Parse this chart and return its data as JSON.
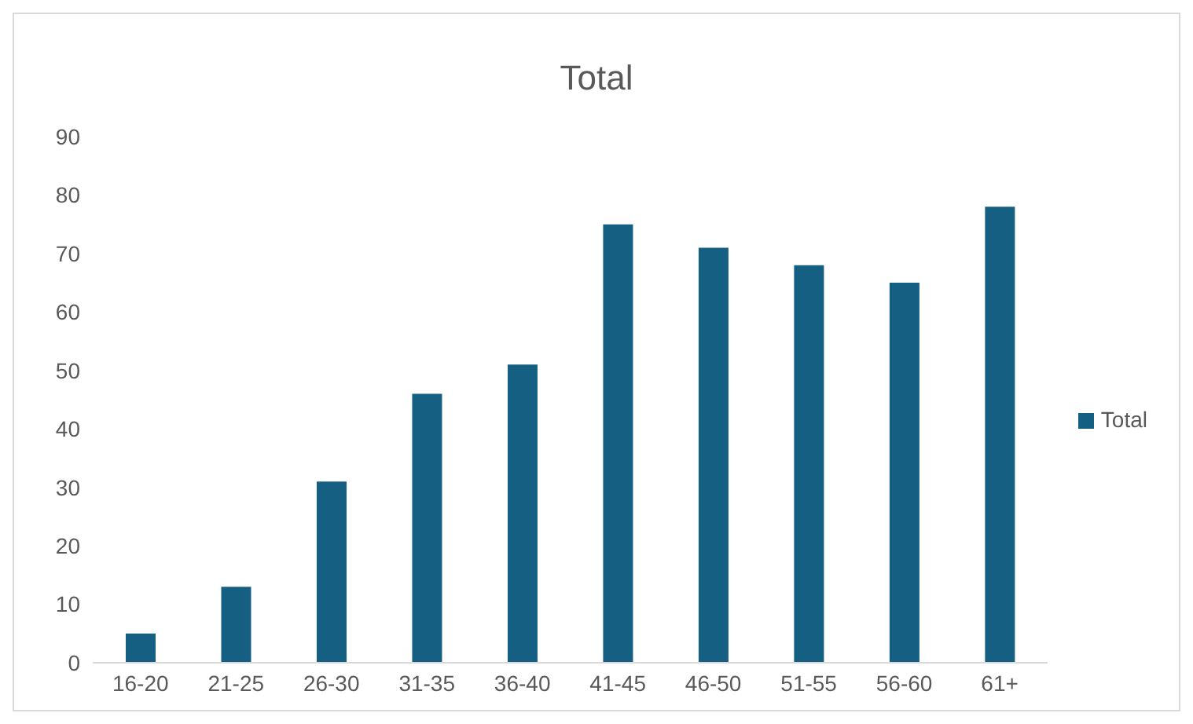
{
  "chart_data": {
    "type": "bar",
    "title": "Total",
    "categories": [
      "16-20",
      "21-25",
      "26-30",
      "31-35",
      "36-40",
      "41-45",
      "46-50",
      "51-55",
      "56-60",
      "61+"
    ],
    "series": [
      {
        "name": "Total",
        "color": "#155f82",
        "values": [
          5,
          13,
          31,
          46,
          51,
          75,
          71,
          68,
          65,
          78
        ]
      }
    ],
    "ylim": [
      0,
      90
    ],
    "yticks": [
      0,
      10,
      20,
      30,
      40,
      50,
      60,
      70,
      80,
      90
    ],
    "grid": false,
    "legend": "right"
  }
}
